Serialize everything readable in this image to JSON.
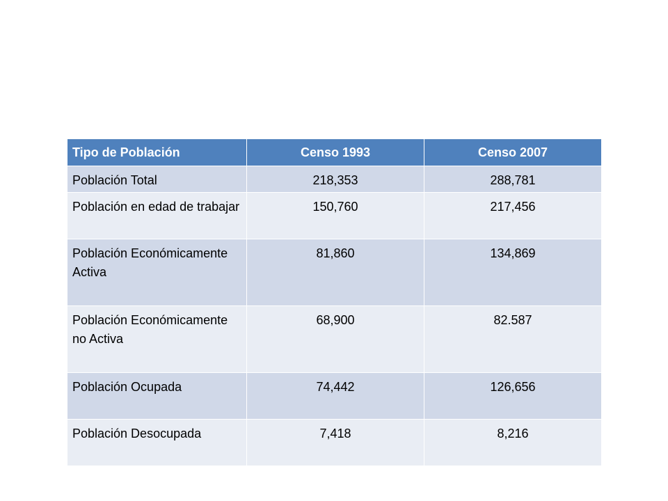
{
  "table": {
    "headers": [
      "Tipo de Población",
      "Censo 1993",
      "Censo 2007"
    ],
    "rows": [
      {
        "label": "Población Total",
        "censo_1993": "218,353",
        "censo_2007": "288,781"
      },
      {
        "label": "Población en edad de trabajar",
        "censo_1993": "150,760",
        "censo_2007": "217,456"
      },
      {
        "label": "Población Económicamente Activa",
        "censo_1993": "81,860",
        "censo_2007": "134,869"
      },
      {
        "label": "Población Económicamente no Activa",
        "censo_1993": "68,900",
        "censo_2007": "82.587"
      },
      {
        "label": "Población Ocupada",
        "censo_1993": "74,442",
        "censo_2007": "126,656"
      },
      {
        "label": "Población Desocupada",
        "censo_1993": "7,418",
        "censo_2007": "8,216"
      }
    ]
  },
  "colors": {
    "header_bg": "#4f81bd",
    "header_text": "#ffffff",
    "row_odd_bg": "#d0d8e8",
    "row_even_bg": "#e9edf4"
  }
}
